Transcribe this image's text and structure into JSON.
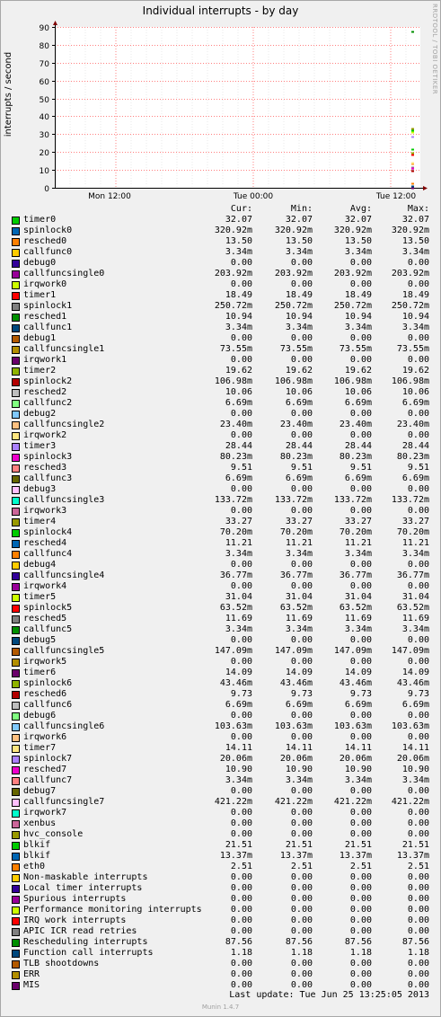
{
  "window": {
    "title": "Individual interrupts - by day"
  },
  "watermark": "RRDTOOL / TOBI OETIKER",
  "footer": {
    "last_update": "Last update:  Tue Jun 25 13:25:05 2013",
    "version": "Munin 1.4.7"
  },
  "legend_headers": {
    "cur": "Cur:",
    "min": "Min:",
    "avg": "Avg:",
    "max": "Max:"
  },
  "chart_data": {
    "type": "line",
    "title": "Individual interrupts - by day",
    "ylabel": "interrupts / second",
    "ylim": [
      0,
      90
    ],
    "yticks": [
      0,
      10,
      20,
      30,
      40,
      50,
      60,
      70,
      80,
      90
    ],
    "xticks": [
      "Mon 12:00",
      "Tue 00:00",
      "Tue 12:00"
    ],
    "grid": true,
    "legend_position": "bottom",
    "series": [
      {
        "name": "timer0",
        "color": "#00cc00",
        "cur": "32.07",
        "min": "32.07",
        "avg": "32.07",
        "max": "32.07",
        "value": 32.07
      },
      {
        "name": "spinlock0",
        "color": "#0066b3",
        "cur": "320.92m",
        "min": "320.92m",
        "avg": "320.92m",
        "max": "320.92m",
        "value": 0.32
      },
      {
        "name": "resched0",
        "color": "#ff8000",
        "cur": "13.50",
        "min": "13.50",
        "avg": "13.50",
        "max": "13.50",
        "value": 13.5
      },
      {
        "name": "callfunc0",
        "color": "#ffcc00",
        "cur": "3.34m",
        "min": "3.34m",
        "avg": "3.34m",
        "max": "3.34m",
        "value": 0.003
      },
      {
        "name": "debug0",
        "color": "#330099",
        "cur": "0.00",
        "min": "0.00",
        "avg": "0.00",
        "max": "0.00",
        "value": 0
      },
      {
        "name": "callfuncsingle0",
        "color": "#990099",
        "cur": "203.92m",
        "min": "203.92m",
        "avg": "203.92m",
        "max": "203.92m",
        "value": 0.2
      },
      {
        "name": "irqwork0",
        "color": "#ccff00",
        "cur": "0.00",
        "min": "0.00",
        "avg": "0.00",
        "max": "0.00",
        "value": 0
      },
      {
        "name": "timer1",
        "color": "#ff0000",
        "cur": "18.49",
        "min": "18.49",
        "avg": "18.49",
        "max": "18.49",
        "value": 18.49
      },
      {
        "name": "spinlock1",
        "color": "#808080",
        "cur": "250.72m",
        "min": "250.72m",
        "avg": "250.72m",
        "max": "250.72m",
        "value": 0.25
      },
      {
        "name": "resched1",
        "color": "#008f00",
        "cur": "10.94",
        "min": "10.94",
        "avg": "10.94",
        "max": "10.94",
        "value": 10.94
      },
      {
        "name": "callfunc1",
        "color": "#00487d",
        "cur": "3.34m",
        "min": "3.34m",
        "avg": "3.34m",
        "max": "3.34m",
        "value": 0.003
      },
      {
        "name": "debug1",
        "color": "#b35a00",
        "cur": "0.00",
        "min": "0.00",
        "avg": "0.00",
        "max": "0.00",
        "value": 0
      },
      {
        "name": "callfuncsingle1",
        "color": "#b38f00",
        "cur": "73.55m",
        "min": "73.55m",
        "avg": "73.55m",
        "max": "73.55m",
        "value": 0.07
      },
      {
        "name": "irqwork1",
        "color": "#6b006b",
        "cur": "0.00",
        "min": "0.00",
        "avg": "0.00",
        "max": "0.00",
        "value": 0
      },
      {
        "name": "timer2",
        "color": "#8fb300",
        "cur": "19.62",
        "min": "19.62",
        "avg": "19.62",
        "max": "19.62",
        "value": 19.62
      },
      {
        "name": "spinlock2",
        "color": "#b30000",
        "cur": "106.98m",
        "min": "106.98m",
        "avg": "106.98m",
        "max": "106.98m",
        "value": 0.11
      },
      {
        "name": "resched2",
        "color": "#bebebe",
        "cur": "10.06",
        "min": "10.06",
        "avg": "10.06",
        "max": "10.06",
        "value": 10.06
      },
      {
        "name": "callfunc2",
        "color": "#80ff80",
        "cur": "6.69m",
        "min": "6.69m",
        "avg": "6.69m",
        "max": "6.69m",
        "value": 0.007
      },
      {
        "name": "debug2",
        "color": "#80c9ff",
        "cur": "0.00",
        "min": "0.00",
        "avg": "0.00",
        "max": "0.00",
        "value": 0
      },
      {
        "name": "callfuncsingle2",
        "color": "#ffc080",
        "cur": "23.40m",
        "min": "23.40m",
        "avg": "23.40m",
        "max": "23.40m",
        "value": 0.02
      },
      {
        "name": "irqwork2",
        "color": "#ffe680",
        "cur": "0.00",
        "min": "0.00",
        "avg": "0.00",
        "max": "0.00",
        "value": 0
      },
      {
        "name": "timer3",
        "color": "#aa80ff",
        "cur": "28.44",
        "min": "28.44",
        "avg": "28.44",
        "max": "28.44",
        "value": 28.44
      },
      {
        "name": "spinlock3",
        "color": "#ee00cc",
        "cur": "80.23m",
        "min": "80.23m",
        "avg": "80.23m",
        "max": "80.23m",
        "value": 0.08
      },
      {
        "name": "resched3",
        "color": "#ff8080",
        "cur": "9.51",
        "min": "9.51",
        "avg": "9.51",
        "max": "9.51",
        "value": 9.51
      },
      {
        "name": "callfunc3",
        "color": "#666600",
        "cur": "6.69m",
        "min": "6.69m",
        "avg": "6.69m",
        "max": "6.69m",
        "value": 0.007
      },
      {
        "name": "debug3",
        "color": "#ffbfff",
        "cur": "0.00",
        "min": "0.00",
        "avg": "0.00",
        "max": "0.00",
        "value": 0
      },
      {
        "name": "callfuncsingle3",
        "color": "#00ffcc",
        "cur": "133.72m",
        "min": "133.72m",
        "avg": "133.72m",
        "max": "133.72m",
        "value": 0.13
      },
      {
        "name": "irqwork3",
        "color": "#cc6699",
        "cur": "0.00",
        "min": "0.00",
        "avg": "0.00",
        "max": "0.00",
        "value": 0
      },
      {
        "name": "timer4",
        "color": "#999900",
        "cur": "33.27",
        "min": "33.27",
        "avg": "33.27",
        "max": "33.27",
        "value": 33.27
      },
      {
        "name": "spinlock4",
        "color": "#00cc00",
        "cur": "70.20m",
        "min": "70.20m",
        "avg": "70.20m",
        "max": "70.20m",
        "value": 0.07
      },
      {
        "name": "resched4",
        "color": "#0066b3",
        "cur": "11.21",
        "min": "11.21",
        "avg": "11.21",
        "max": "11.21",
        "value": 11.21
      },
      {
        "name": "callfunc4",
        "color": "#ff8000",
        "cur": "3.34m",
        "min": "3.34m",
        "avg": "3.34m",
        "max": "3.34m",
        "value": 0.003
      },
      {
        "name": "debug4",
        "color": "#ffcc00",
        "cur": "0.00",
        "min": "0.00",
        "avg": "0.00",
        "max": "0.00",
        "value": 0
      },
      {
        "name": "callfuncsingle4",
        "color": "#330099",
        "cur": "36.77m",
        "min": "36.77m",
        "avg": "36.77m",
        "max": "36.77m",
        "value": 0.04
      },
      {
        "name": "irqwork4",
        "color": "#990099",
        "cur": "0.00",
        "min": "0.00",
        "avg": "0.00",
        "max": "0.00",
        "value": 0
      },
      {
        "name": "timer5",
        "color": "#ccff00",
        "cur": "31.04",
        "min": "31.04",
        "avg": "31.04",
        "max": "31.04",
        "value": 31.04
      },
      {
        "name": "spinlock5",
        "color": "#ff0000",
        "cur": "63.52m",
        "min": "63.52m",
        "avg": "63.52m",
        "max": "63.52m",
        "value": 0.06
      },
      {
        "name": "resched5",
        "color": "#808080",
        "cur": "11.69",
        "min": "11.69",
        "avg": "11.69",
        "max": "11.69",
        "value": 11.69
      },
      {
        "name": "callfunc5",
        "color": "#008f00",
        "cur": "3.34m",
        "min": "3.34m",
        "avg": "3.34m",
        "max": "3.34m",
        "value": 0.003
      },
      {
        "name": "debug5",
        "color": "#00487d",
        "cur": "0.00",
        "min": "0.00",
        "avg": "0.00",
        "max": "0.00",
        "value": 0
      },
      {
        "name": "callfuncsingle5",
        "color": "#b35a00",
        "cur": "147.09m",
        "min": "147.09m",
        "avg": "147.09m",
        "max": "147.09m",
        "value": 0.15
      },
      {
        "name": "irqwork5",
        "color": "#b38f00",
        "cur": "0.00",
        "min": "0.00",
        "avg": "0.00",
        "max": "0.00",
        "value": 0
      },
      {
        "name": "timer6",
        "color": "#6b006b",
        "cur": "14.09",
        "min": "14.09",
        "avg": "14.09",
        "max": "14.09",
        "value": 14.09
      },
      {
        "name": "spinlock6",
        "color": "#8fb300",
        "cur": "43.46m",
        "min": "43.46m",
        "avg": "43.46m",
        "max": "43.46m",
        "value": 0.04
      },
      {
        "name": "resched6",
        "color": "#b30000",
        "cur": "9.73",
        "min": "9.73",
        "avg": "9.73",
        "max": "9.73",
        "value": 9.73
      },
      {
        "name": "callfunc6",
        "color": "#bebebe",
        "cur": "6.69m",
        "min": "6.69m",
        "avg": "6.69m",
        "max": "6.69m",
        "value": 0.007
      },
      {
        "name": "debug6",
        "color": "#80ff80",
        "cur": "0.00",
        "min": "0.00",
        "avg": "0.00",
        "max": "0.00",
        "value": 0
      },
      {
        "name": "callfuncsingle6",
        "color": "#80c9ff",
        "cur": "103.63m",
        "min": "103.63m",
        "avg": "103.63m",
        "max": "103.63m",
        "value": 0.1
      },
      {
        "name": "irqwork6",
        "color": "#ffc080",
        "cur": "0.00",
        "min": "0.00",
        "avg": "0.00",
        "max": "0.00",
        "value": 0
      },
      {
        "name": "timer7",
        "color": "#ffe680",
        "cur": "14.11",
        "min": "14.11",
        "avg": "14.11",
        "max": "14.11",
        "value": 14.11
      },
      {
        "name": "spinlock7",
        "color": "#aa80ff",
        "cur": "20.06m",
        "min": "20.06m",
        "avg": "20.06m",
        "max": "20.06m",
        "value": 0.02
      },
      {
        "name": "resched7",
        "color": "#ee00cc",
        "cur": "10.90",
        "min": "10.90",
        "avg": "10.90",
        "max": "10.90",
        "value": 10.9
      },
      {
        "name": "callfunc7",
        "color": "#ff8080",
        "cur": "3.34m",
        "min": "3.34m",
        "avg": "3.34m",
        "max": "3.34m",
        "value": 0.003
      },
      {
        "name": "debug7",
        "color": "#666600",
        "cur": "0.00",
        "min": "0.00",
        "avg": "0.00",
        "max": "0.00",
        "value": 0
      },
      {
        "name": "callfuncsingle7",
        "color": "#ffbfff",
        "cur": "421.22m",
        "min": "421.22m",
        "avg": "421.22m",
        "max": "421.22m",
        "value": 0.42
      },
      {
        "name": "irqwork7",
        "color": "#00ffcc",
        "cur": "0.00",
        "min": "0.00",
        "avg": "0.00",
        "max": "0.00",
        "value": 0
      },
      {
        "name": "xenbus",
        "color": "#cc6699",
        "cur": "0.00",
        "min": "0.00",
        "avg": "0.00",
        "max": "0.00",
        "value": 0
      },
      {
        "name": "hvc_console",
        "color": "#999900",
        "cur": "0.00",
        "min": "0.00",
        "avg": "0.00",
        "max": "0.00",
        "value": 0
      },
      {
        "name": "blkif",
        "color": "#00cc00",
        "cur": "21.51",
        "min": "21.51",
        "avg": "21.51",
        "max": "21.51",
        "value": 21.51
      },
      {
        "name": "blkif",
        "color": "#0066b3",
        "cur": "13.37m",
        "min": "13.37m",
        "avg": "13.37m",
        "max": "13.37m",
        "value": 0.013
      },
      {
        "name": "eth0",
        "color": "#ff8000",
        "cur": "2.51",
        "min": "2.51",
        "avg": "2.51",
        "max": "2.51",
        "value": 2.51
      },
      {
        "name": "Non-maskable interrupts",
        "color": "#ffcc00",
        "cur": "0.00",
        "min": "0.00",
        "avg": "0.00",
        "max": "0.00",
        "value": 0
      },
      {
        "name": "Local timer interrupts",
        "color": "#330099",
        "cur": "0.00",
        "min": "0.00",
        "avg": "0.00",
        "max": "0.00",
        "value": 0
      },
      {
        "name": "Spurious interrupts",
        "color": "#990099",
        "cur": "0.00",
        "min": "0.00",
        "avg": "0.00",
        "max": "0.00",
        "value": 0
      },
      {
        "name": "Performance monitoring interrupts",
        "color": "#ccff00",
        "cur": "0.00",
        "min": "0.00",
        "avg": "0.00",
        "max": "0.00",
        "value": 0
      },
      {
        "name": "IRQ work interrupts",
        "color": "#ff0000",
        "cur": "0.00",
        "min": "0.00",
        "avg": "0.00",
        "max": "0.00",
        "value": 0
      },
      {
        "name": "APIC ICR read retries",
        "color": "#808080",
        "cur": "0.00",
        "min": "0.00",
        "avg": "0.00",
        "max": "0.00",
        "value": 0
      },
      {
        "name": "Rescheduling interrupts",
        "color": "#008f00",
        "cur": "87.56",
        "min": "87.56",
        "avg": "87.56",
        "max": "87.56",
        "value": 87.56
      },
      {
        "name": "Function call interrupts",
        "color": "#00487d",
        "cur": "1.18",
        "min": "1.18",
        "avg": "1.18",
        "max": "1.18",
        "value": 1.18
      },
      {
        "name": "TLB shootdowns",
        "color": "#b35a00",
        "cur": "0.00",
        "min": "0.00",
        "avg": "0.00",
        "max": "0.00",
        "value": 0
      },
      {
        "name": "ERR",
        "color": "#b38f00",
        "cur": "0.00",
        "min": "0.00",
        "avg": "0.00",
        "max": "0.00",
        "value": 0
      },
      {
        "name": "MIS",
        "color": "#6b006b",
        "cur": "0.00",
        "min": "0.00",
        "avg": "0.00",
        "max": "0.00",
        "value": 0
      }
    ]
  }
}
